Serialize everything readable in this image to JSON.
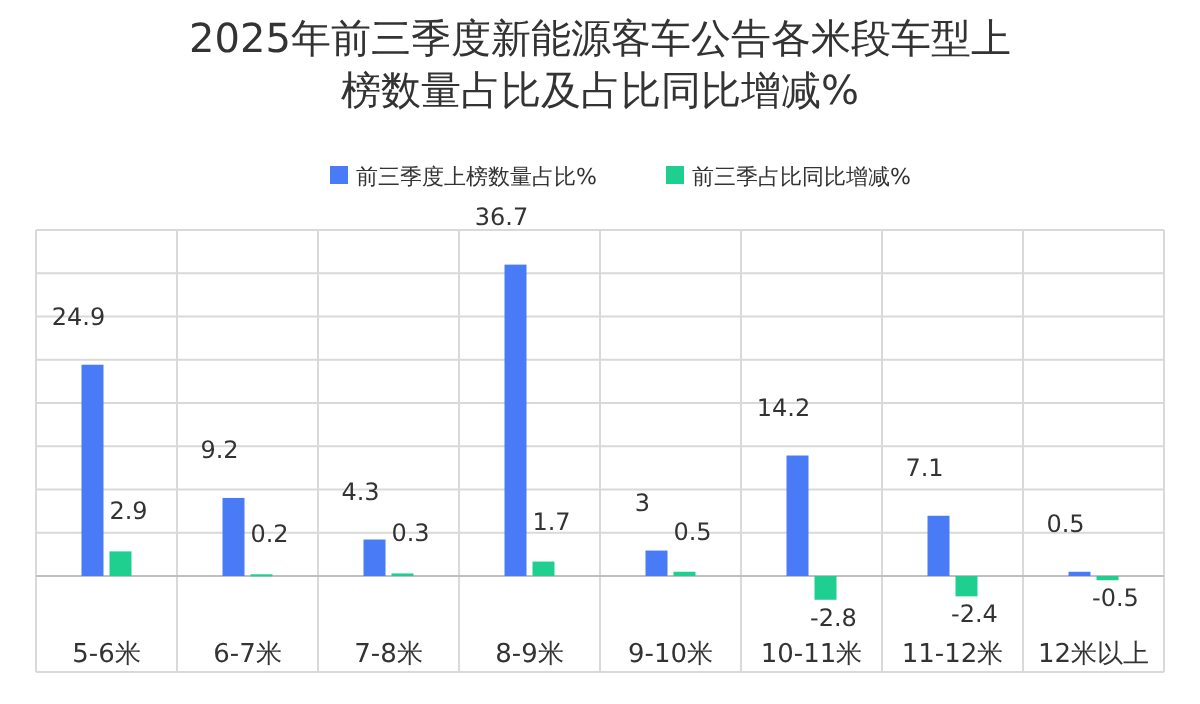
{
  "chart_data": {
    "type": "bar",
    "title": "2025年前三季度新能源客车公告各米段车型上榜数量占比及占比同比增减%",
    "categories": [
      "5-6米",
      "6-7米",
      "7-8米",
      "8-9米",
      "9-10米",
      "10-11米",
      "11-12米",
      "12米以上"
    ],
    "series": [
      {
        "name": "前三季度上榜数量占比%",
        "color": "#4a7bf7",
        "values": [
          24.9,
          9.2,
          4.3,
          36.7,
          3,
          14.2,
          7.1,
          0.5
        ]
      },
      {
        "name": "前三季占比同比增减%",
        "color": "#1fcf8f",
        "values": [
          2.9,
          0.2,
          0.3,
          1.7,
          0.5,
          -2.8,
          -2.4,
          -0.5
        ]
      }
    ],
    "data_labels": true,
    "grid": true,
    "legend": "top"
  }
}
